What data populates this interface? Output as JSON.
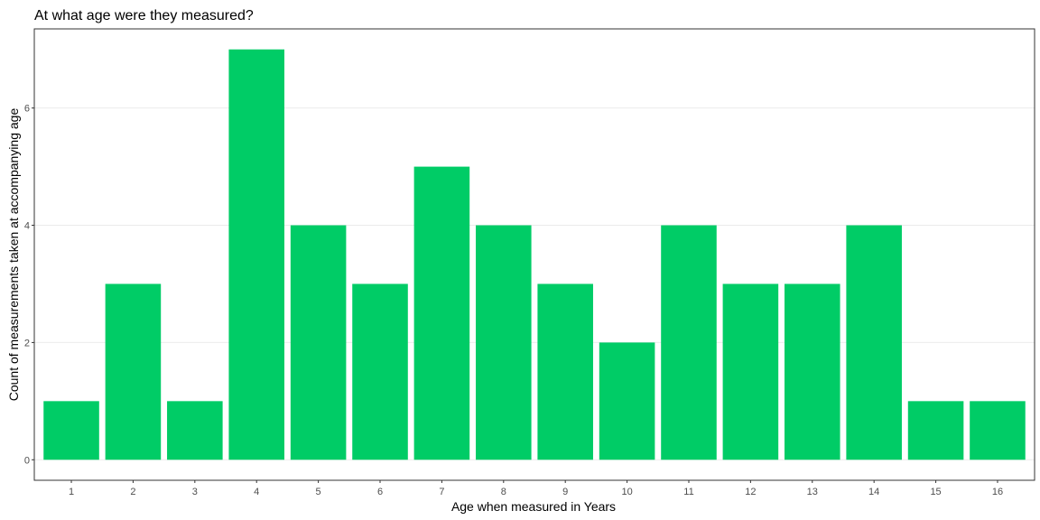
{
  "chart_data": {
    "type": "bar",
    "title": "At what age were they measured?",
    "xlabel": "Age when measured in Years",
    "ylabel": "Count of measurements taken at accompanying age",
    "categories": [
      "1",
      "2",
      "3",
      "4",
      "5",
      "6",
      "7",
      "8",
      "9",
      "10",
      "11",
      "12",
      "13",
      "14",
      "15",
      "16"
    ],
    "values": [
      1,
      3,
      1,
      7,
      4,
      3,
      5,
      4,
      3,
      2,
      4,
      3,
      3,
      4,
      1,
      1
    ],
    "ylim": [
      -0.35,
      7.35
    ],
    "yticks": [
      0,
      2,
      4,
      6
    ],
    "grid": true,
    "legend": "none",
    "bar_color": "#00cc66"
  }
}
